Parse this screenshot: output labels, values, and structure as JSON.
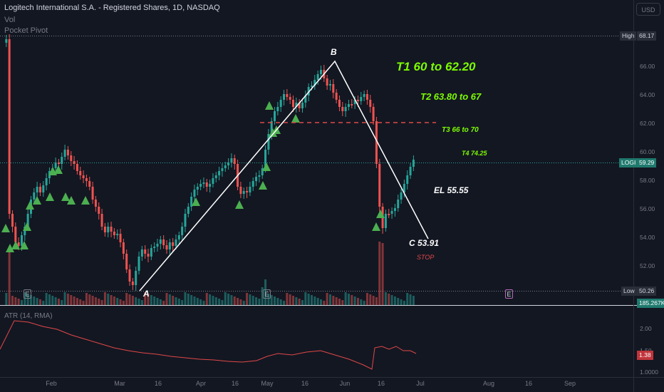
{
  "header": {
    "symbol_line": "Logitech International S.A. - Registered Shares, 1D, NASDAQ",
    "indicator_vol": "Vol",
    "indicator_pivot": "Pocket Pivot"
  },
  "currency_button": "USD",
  "price_scale": {
    "ticks": [
      "66.00",
      "64.00",
      "62.00",
      "60.00",
      "58.00",
      "56.00",
      "54.00",
      "52.00"
    ],
    "high_label": "High",
    "high_value": "68.17",
    "low_label": "Low",
    "low_value": "50.26",
    "ticker_label": "LOGI",
    "last_price": "59.29",
    "volume_value": "185.267K"
  },
  "atr_panel": {
    "title": "ATR (14, RMA)",
    "ticks": [
      "2.00",
      "1.50",
      "1.0000"
    ],
    "current_value": "1.38"
  },
  "time_axis": [
    "Feb",
    "Mar",
    "16",
    "Apr",
    "16",
    "May",
    "16",
    "Jun",
    "16",
    "Jul",
    "Aug",
    "16",
    "Sep"
  ],
  "annotations": {
    "point_a": "A",
    "point_b": "B",
    "t1": "T1 60 to 62.20",
    "t2": "T2 63.80 to 67",
    "t3": "T3  66 to 70",
    "t4": "T4 74.25",
    "el": "EL 55.55",
    "c": "C 53.91",
    "stop": "STOP"
  },
  "earnings_marker": "E",
  "colors": {
    "background": "#131722",
    "bull_candle": "#26a69a",
    "bear_candle": "#ef5350",
    "pocket_pivot": "#4caf50",
    "atr_line": "#e04848",
    "annotation_green": "#7cfc00",
    "stop_red": "#e04848"
  }
}
